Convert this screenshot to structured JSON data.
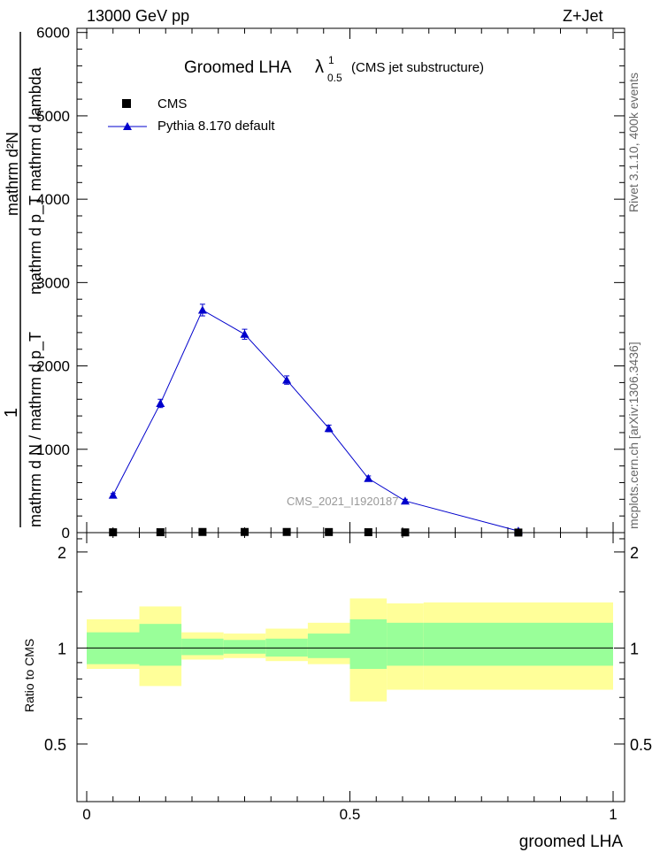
{
  "header": {
    "energy_label": "13000 GeV pp",
    "process_label": "Z+Jet"
  },
  "side": {
    "rivet_label": "Rivet 3.1.10,  400k events",
    "mcplots_label": "mcplots.cern.ch [arXiv:1306.3436]"
  },
  "colors": {
    "mc_line": "#0000cc",
    "data_marker": "#000000",
    "band_inner": "#99ff99",
    "band_outer": "#ffff99",
    "watermark": "#999999"
  },
  "chart_data": [
    {
      "type": "line",
      "title": "Groomed LHA",
      "title_symbol": "λ",
      "title_superscript": "1",
      "title_subscript": "0.5",
      "title_suffix": "(CMS jet substructure)",
      "ylabel_top": "mathrm d²N",
      "ylabel_top_denom": "mathrm d p_T mathrm d lambda",
      "ylabel_one": "1",
      "ylabel_bottom": "mathrm d N / mathrm d p_T",
      "watermark": "CMS_2021_I1920187",
      "ylim": [
        0,
        6050
      ],
      "yticks": [
        0,
        1000,
        2000,
        3000,
        4000,
        5000,
        6000
      ],
      "xlim": [
        -0.02,
        1.02
      ],
      "legend": {
        "placement": "top-left",
        "entries": [
          "CMS",
          "Pythia 8.170 default"
        ]
      },
      "series": [
        {
          "name": "CMS",
          "x": [
            0.05,
            0.14,
            0.22,
            0.3,
            0.38,
            0.46,
            0.535,
            0.605,
            0.82
          ],
          "values": [
            4,
            5,
            8,
            8,
            8,
            7,
            5,
            3,
            1
          ]
        },
        {
          "name": "Pythia 8.170 default",
          "x": [
            0.05,
            0.14,
            0.22,
            0.3,
            0.38,
            0.46,
            0.535,
            0.605,
            0.82
          ],
          "values": [
            450,
            1550,
            2670,
            2380,
            1830,
            1250,
            650,
            380,
            20
          ],
          "errors": [
            20,
            50,
            70,
            60,
            50,
            40,
            30,
            20,
            5
          ]
        }
      ]
    },
    {
      "type": "area",
      "ylabel": "Ratio to CMS",
      "xlabel": "groomed LHA",
      "xlim": [
        -0.02,
        1.02
      ],
      "xticks": [
        0,
        0.5,
        1
      ],
      "xtick_labels": [
        "0",
        "0.5",
        "1"
      ],
      "ylim": [
        0.33,
        2.3
      ],
      "yticks": [
        0.5,
        1,
        2
      ],
      "ytick_labels": [
        "0.5",
        "1",
        "2"
      ],
      "bins": [
        {
          "x0": 0.0,
          "x1": 0.1,
          "inner": [
            0.89,
            1.12
          ],
          "outer": [
            0.86,
            1.23
          ]
        },
        {
          "x0": 0.1,
          "x1": 0.18,
          "inner": [
            0.88,
            1.19
          ],
          "outer": [
            0.76,
            1.35
          ]
        },
        {
          "x0": 0.18,
          "x1": 0.26,
          "inner": [
            0.95,
            1.07
          ],
          "outer": [
            0.92,
            1.12
          ]
        },
        {
          "x0": 0.26,
          "x1": 0.34,
          "inner": [
            0.96,
            1.06
          ],
          "outer": [
            0.93,
            1.11
          ]
        },
        {
          "x0": 0.34,
          "x1": 0.42,
          "inner": [
            0.94,
            1.07
          ],
          "outer": [
            0.91,
            1.15
          ]
        },
        {
          "x0": 0.42,
          "x1": 0.5,
          "inner": [
            0.93,
            1.11
          ],
          "outer": [
            0.89,
            1.2
          ]
        },
        {
          "x0": 0.5,
          "x1": 0.57,
          "inner": [
            0.86,
            1.23
          ],
          "outer": [
            0.68,
            1.43
          ]
        },
        {
          "x0": 0.57,
          "x1": 0.64,
          "inner": [
            0.88,
            1.2
          ],
          "outer": [
            0.74,
            1.38
          ]
        },
        {
          "x0": 0.64,
          "x1": 1.0,
          "inner": [
            0.88,
            1.2
          ],
          "outer": [
            0.74,
            1.39
          ]
        }
      ],
      "series": [
        {
          "name": "Pythia 8.170 default",
          "values": [
            1,
            1,
            1,
            1,
            1,
            1,
            1,
            1,
            1
          ]
        }
      ]
    }
  ]
}
